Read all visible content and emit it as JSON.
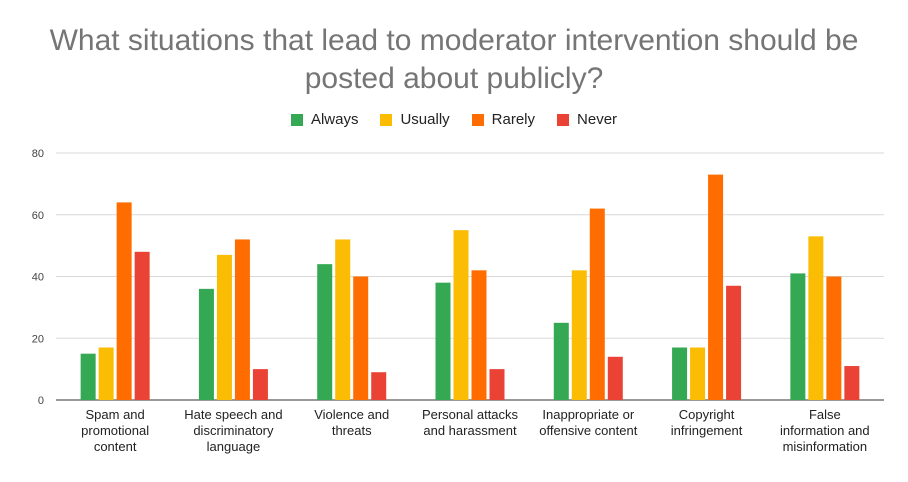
{
  "chart_data": {
    "type": "bar",
    "title_lines": [
      "What situations that lead to moderator intervention should be",
      "posted about publicly?"
    ],
    "categories": [
      [
        "Spam and",
        "promotional",
        "content"
      ],
      [
        "Hate speech and",
        "discriminatory",
        "language"
      ],
      [
        "Violence and",
        "threats"
      ],
      [
        "Personal attacks",
        "and harassment"
      ],
      [
        "Inappropriate or",
        "offensive content"
      ],
      [
        "Copyright",
        "infringement"
      ],
      [
        "False",
        "information and",
        "misinformation"
      ]
    ],
    "series": [
      {
        "name": "Always",
        "color": "#34a853",
        "values": [
          15,
          36,
          44,
          38,
          25,
          17,
          41
        ]
      },
      {
        "name": "Usually",
        "color": "#fbbc04",
        "values": [
          17,
          47,
          52,
          55,
          42,
          17,
          53
        ]
      },
      {
        "name": "Rarely",
        "color": "#ff6d01",
        "values": [
          64,
          52,
          40,
          42,
          62,
          73,
          40
        ]
      },
      {
        "name": "Never",
        "color": "#ea4335",
        "values": [
          48,
          10,
          9,
          10,
          14,
          37,
          11
        ]
      }
    ],
    "ylim": [
      0,
      80
    ],
    "yticks": [
      0,
      20,
      40,
      60,
      80
    ],
    "grid": true,
    "legend_position": "top-center"
  }
}
